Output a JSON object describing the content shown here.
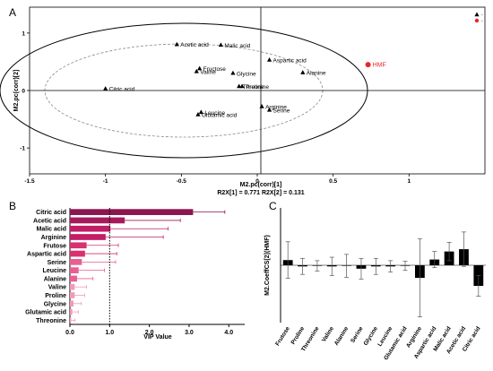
{
  "colors": {
    "axis": "#000000",
    "marker": "#000000",
    "hmf": "#e8262b",
    "vip_grad": [
      "#8b1650",
      "#a61a5c",
      "#c21d67",
      "#d9306f",
      "#e95f92",
      "#f199b8"
    ]
  },
  "chart_data": [
    {
      "panel": "A",
      "type": "scatter",
      "xlabel": "M2.pc(corr)[1]",
      "ylabel": "M2.pc(corr)[2]",
      "caption": "R2X[1] = 0.771 R2X[2] = 0.131",
      "xlim": [
        -1.5,
        1.5
      ],
      "ylim": [
        -1.45,
        1.45
      ],
      "xticks": [
        "-1.5",
        "-1",
        "-0.5",
        "0",
        "0.5",
        "1"
      ],
      "yticks": [
        "1",
        "0",
        "-1"
      ],
      "legend": [
        "▲",
        "●"
      ],
      "points": [
        {
          "label": "Acetic acid",
          "x": -0.53,
          "y": 0.8,
          "kind": "compound"
        },
        {
          "label": "Malic acid",
          "x": -0.24,
          "y": 0.79,
          "kind": "compound"
        },
        {
          "label": "Fructose",
          "x": -0.38,
          "y": 0.38,
          "kind": "compound"
        },
        {
          "label": "Valine",
          "x": -0.4,
          "y": 0.33,
          "kind": "compound"
        },
        {
          "label": "Glycine",
          "x": -0.16,
          "y": 0.3,
          "kind": "compound"
        },
        {
          "label": "Aspartic acid",
          "x": 0.08,
          "y": 0.53,
          "kind": "compound"
        },
        {
          "label": "Alanine",
          "x": 0.3,
          "y": 0.31,
          "kind": "compound"
        },
        {
          "label": "Threonine",
          "x": -0.12,
          "y": 0.07,
          "kind": "compound"
        },
        {
          "label": "Proline",
          "x": -0.1,
          "y": 0.07,
          "kind": "compound"
        },
        {
          "label": "Citric acid",
          "x": -1.0,
          "y": 0.03,
          "kind": "compound"
        },
        {
          "label": "Arginine",
          "x": 0.03,
          "y": -0.28,
          "kind": "compound"
        },
        {
          "label": "Serine",
          "x": 0.08,
          "y": -0.34,
          "kind": "compound"
        },
        {
          "label": "Leucine",
          "x": -0.37,
          "y": -0.38,
          "kind": "compound"
        },
        {
          "label": "Glutamic acid",
          "x": -0.39,
          "y": -0.42,
          "kind": "compound"
        },
        {
          "label": "HMF",
          "x": 0.73,
          "y": 0.45,
          "kind": "hmf"
        }
      ]
    },
    {
      "panel": "B",
      "type": "bar",
      "orientation": "horizontal",
      "xlabel": "VIP Value",
      "xlim": [
        0,
        4.4
      ],
      "xticks": [
        "0.0",
        "1.0",
        "2.0",
        "3.0",
        "4.0"
      ],
      "reference_line": 1.0,
      "categories": [
        "Citric acid",
        "Acetic acid",
        "Malic acid",
        "Arginine",
        "Frutose",
        "Aspartic acid",
        "Serine",
        "Leucine",
        "Alanine",
        "Valine",
        "Proline",
        "Glycine",
        "Glutamic acid",
        "Threonine"
      ],
      "values": [
        3.1,
        1.38,
        1.02,
        0.9,
        0.42,
        0.38,
        0.3,
        0.22,
        0.18,
        0.12,
        0.12,
        0.09,
        0.06,
        0.03
      ],
      "errors": [
        0.8,
        1.4,
        1.45,
        1.45,
        0.8,
        0.8,
        0.85,
        0.65,
        0.4,
        0.3,
        0.25,
        0.2,
        0.15,
        0.1
      ]
    },
    {
      "panel": "C",
      "type": "bar",
      "ylabel": "M2.CoeffCS[2](HMF)",
      "ylim": [
        -0.5,
        0.5
      ],
      "categories": [
        "Frutose",
        "Proline",
        "Threonine",
        "Valine",
        "Alanine",
        "Serine",
        "Glycine",
        "Leucine",
        "Glutamic acid",
        "Arginine",
        "Aspartic acid",
        "Malic acid",
        "Acetic acid",
        "Citric acid"
      ],
      "values": [
        0.045,
        -0.01,
        -0.005,
        -0.01,
        -0.005,
        -0.03,
        -0.01,
        -0.01,
        -0.005,
        -0.11,
        0.05,
        0.12,
        0.14,
        -0.18
      ],
      "errors": [
        0.16,
        0.07,
        0.045,
        0.08,
        0.1,
        0.09,
        0.07,
        0.05,
        0.04,
        0.34,
        0.07,
        0.08,
        0.15,
        0.09
      ]
    }
  ]
}
